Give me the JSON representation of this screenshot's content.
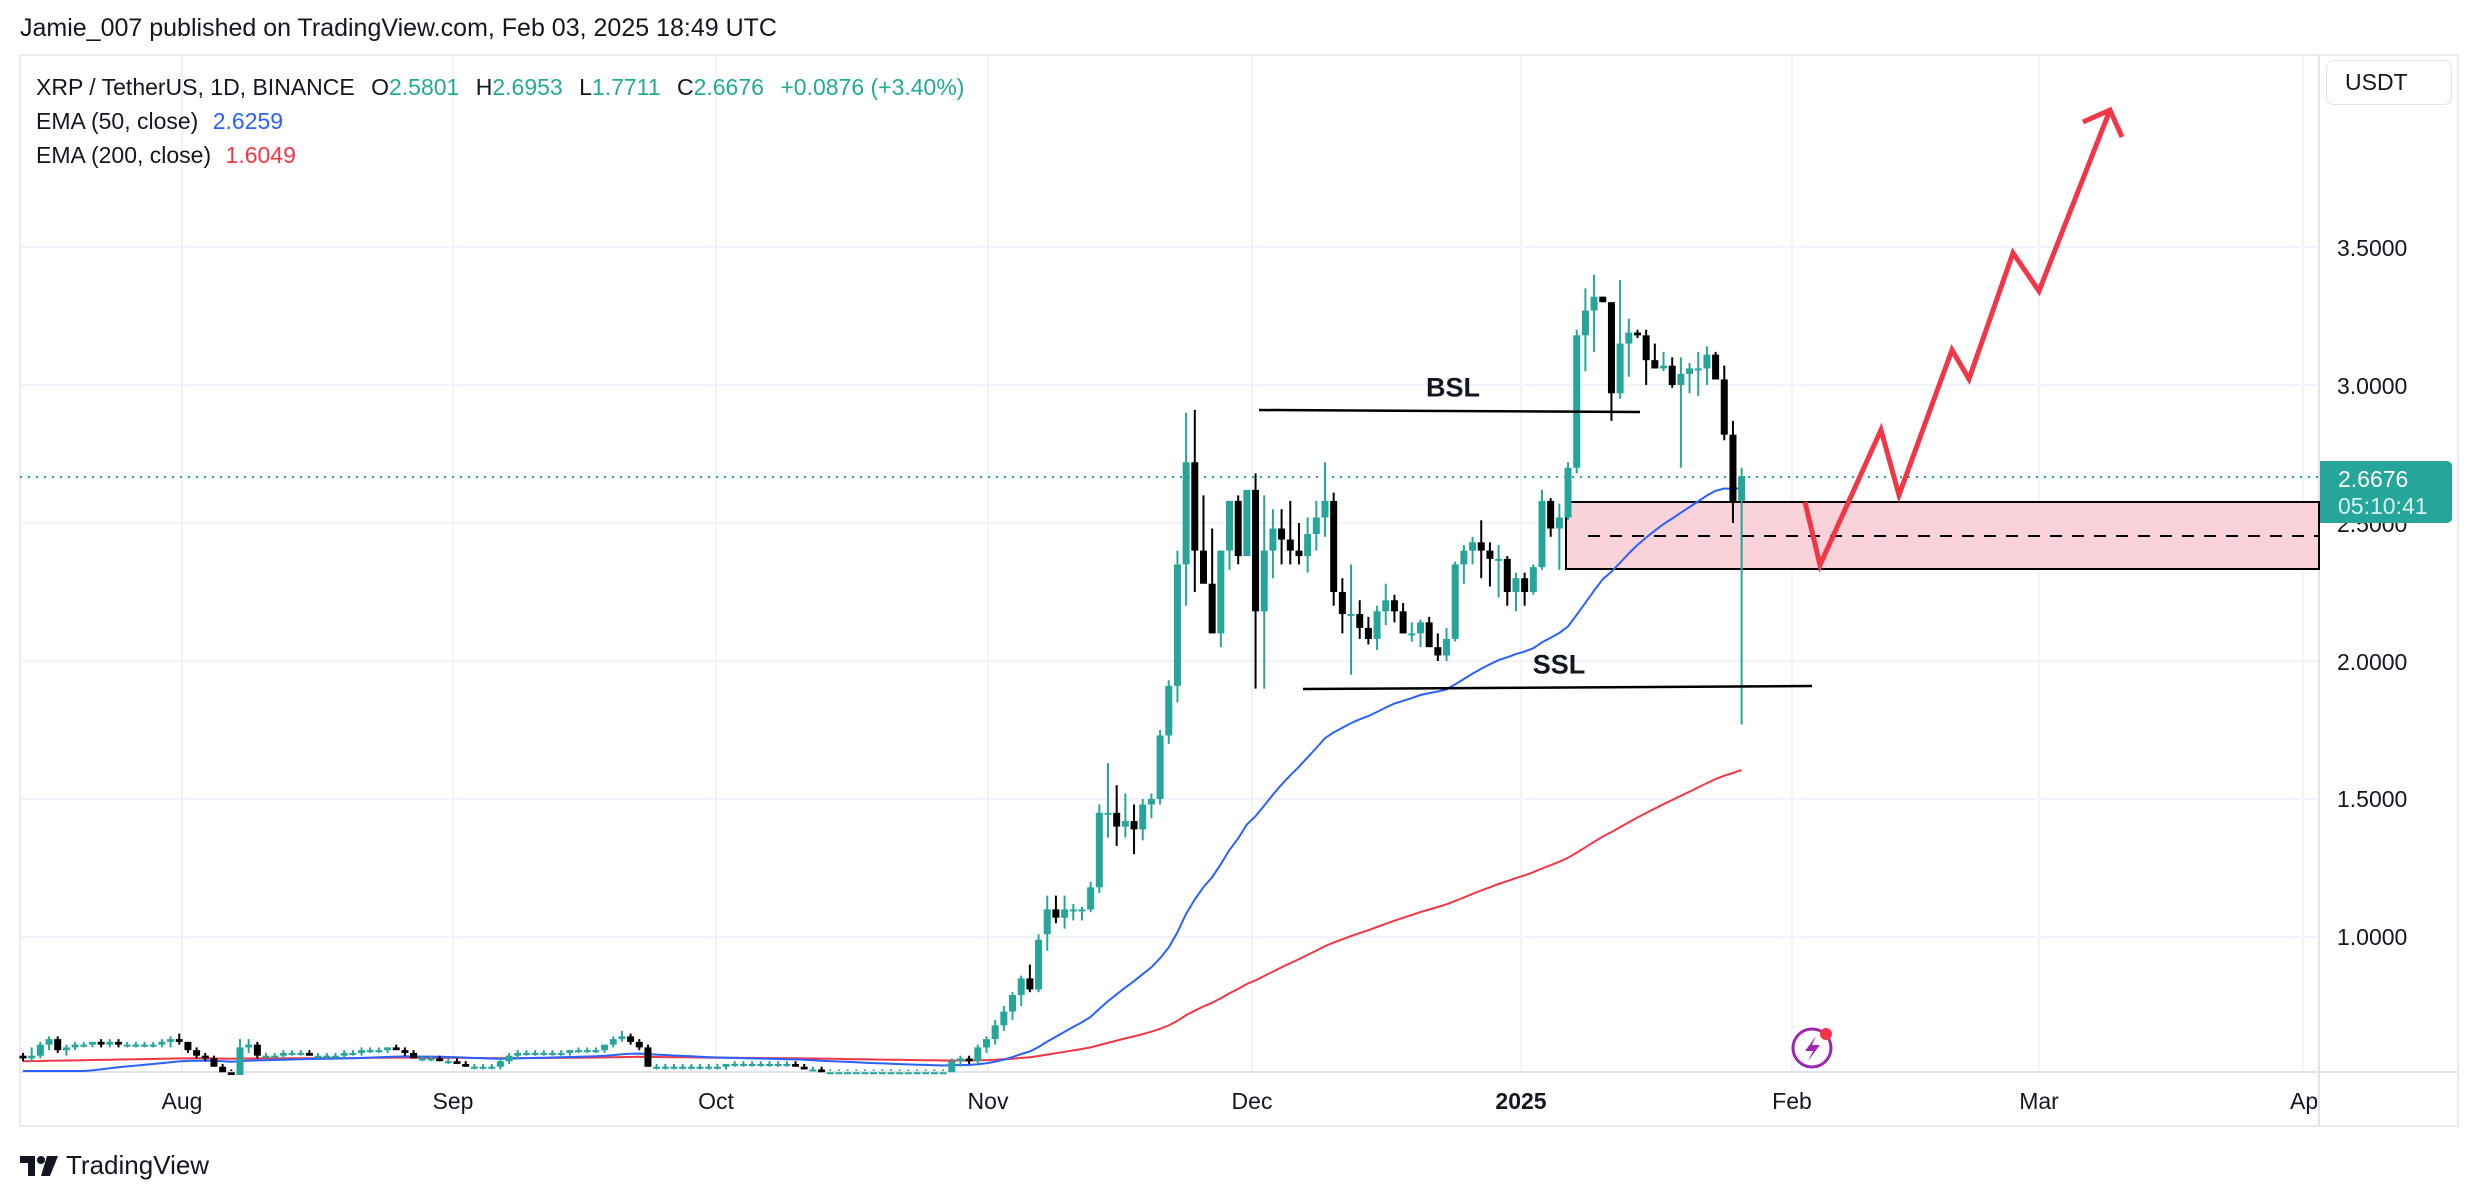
{
  "header": {
    "published_line": "Jamie_007 published on TradingView.com, Feb 03, 2025 18:49 UTC"
  },
  "legend": {
    "symbol_line": "XRP / TetherUS, 1D, BINANCE",
    "o_label": "O",
    "o_value": "2.5801",
    "h_label": "H",
    "h_value": "2.6953",
    "l_label": "L",
    "l_value": "1.7711",
    "c_label": "C",
    "c_value": "2.6676",
    "change": "+0.0876 (+3.40%)",
    "ema50_label": "EMA (50, close)",
    "ema50_value": "2.6259",
    "ema50_color": "#2962ff",
    "ema200_label": "EMA (200, close)",
    "ema200_value": "1.6049",
    "ema200_color": "#f23645"
  },
  "price_axis": {
    "currency": "USDT",
    "ticks": [
      "3.5000",
      "3.0000",
      "2.5000",
      "2.0000",
      "1.5000",
      "1.0000"
    ],
    "last_price": "2.6676",
    "countdown": "05:10:41"
  },
  "time_axis": {
    "ticks": [
      "Aug",
      "Sep",
      "Oct",
      "Nov",
      "Dec",
      "2025",
      "Feb",
      "Mar",
      "Ap"
    ]
  },
  "annotations": {
    "bsl": "BSL",
    "ssl": "SSL"
  },
  "brand": {
    "name": "TradingView"
  },
  "colors": {
    "up": "#26a69a",
    "down": "#000000",
    "zone_fill": "#f9d3d9",
    "projection": "#f23645",
    "last_price_line": "#26a69a"
  },
  "chart_data": {
    "type": "candlestick",
    "title": "XRP / TetherUS, 1D, BINANCE",
    "xlabel": "",
    "ylabel": "USDT",
    "ylim": [
      0.51,
      3.83
    ],
    "grid": true,
    "x_ticks": [
      "Aug",
      "Sep",
      "Oct",
      "Nov",
      "Dec",
      "2025",
      "Feb",
      "Mar",
      "Apr"
    ],
    "y_ticks": [
      1.0,
      1.5,
      2.0,
      2.5,
      3.0,
      3.5
    ],
    "start_date": "2024-07-14",
    "ohlc": [
      [
        0.57,
        0.58,
        0.55,
        0.56
      ],
      [
        0.56,
        0.6,
        0.55,
        0.57
      ],
      [
        0.57,
        0.62,
        0.56,
        0.61
      ],
      [
        0.61,
        0.64,
        0.59,
        0.63
      ],
      [
        0.63,
        0.64,
        0.58,
        0.59
      ],
      [
        0.59,
        0.61,
        0.57,
        0.6
      ],
      [
        0.6,
        0.62,
        0.59,
        0.61
      ],
      [
        0.61,
        0.62,
        0.6,
        0.61
      ],
      [
        0.61,
        0.62,
        0.6,
        0.62
      ],
      [
        0.62,
        0.63,
        0.6,
        0.61
      ],
      [
        0.61,
        0.63,
        0.6,
        0.62
      ],
      [
        0.62,
        0.63,
        0.6,
        0.61
      ],
      [
        0.61,
        0.62,
        0.6,
        0.61
      ],
      [
        0.61,
        0.62,
        0.6,
        0.61
      ],
      [
        0.61,
        0.62,
        0.6,
        0.61
      ],
      [
        0.61,
        0.62,
        0.6,
        0.61
      ],
      [
        0.61,
        0.63,
        0.6,
        0.62
      ],
      [
        0.62,
        0.64,
        0.6,
        0.63
      ],
      [
        0.63,
        0.65,
        0.61,
        0.62
      ],
      [
        0.62,
        0.62,
        0.58,
        0.59
      ],
      [
        0.59,
        0.6,
        0.56,
        0.57
      ],
      [
        0.57,
        0.58,
        0.55,
        0.56
      ],
      [
        0.56,
        0.57,
        0.53,
        0.53
      ],
      [
        0.53,
        0.54,
        0.5,
        0.51
      ],
      [
        0.51,
        0.52,
        0.5,
        0.5
      ],
      [
        0.5,
        0.63,
        0.49,
        0.6
      ],
      [
        0.6,
        0.63,
        0.58,
        0.61
      ],
      [
        0.61,
        0.62,
        0.56,
        0.57
      ],
      [
        0.57,
        0.58,
        0.56,
        0.57
      ],
      [
        0.57,
        0.58,
        0.56,
        0.57
      ],
      [
        0.57,
        0.59,
        0.56,
        0.58
      ],
      [
        0.58,
        0.59,
        0.57,
        0.58
      ],
      [
        0.58,
        0.59,
        0.57,
        0.58
      ],
      [
        0.58,
        0.59,
        0.57,
        0.57
      ],
      [
        0.57,
        0.58,
        0.56,
        0.57
      ],
      [
        0.57,
        0.58,
        0.56,
        0.57
      ],
      [
        0.57,
        0.58,
        0.56,
        0.57
      ],
      [
        0.57,
        0.59,
        0.56,
        0.58
      ],
      [
        0.58,
        0.59,
        0.57,
        0.58
      ],
      [
        0.58,
        0.6,
        0.57,
        0.59
      ],
      [
        0.59,
        0.6,
        0.58,
        0.59
      ],
      [
        0.59,
        0.6,
        0.58,
        0.59
      ],
      [
        0.59,
        0.6,
        0.58,
        0.6
      ],
      [
        0.6,
        0.61,
        0.59,
        0.59
      ],
      [
        0.59,
        0.6,
        0.57,
        0.58
      ],
      [
        0.58,
        0.59,
        0.56,
        0.56
      ],
      [
        0.56,
        0.57,
        0.55,
        0.56
      ],
      [
        0.56,
        0.57,
        0.55,
        0.56
      ],
      [
        0.56,
        0.57,
        0.55,
        0.55
      ],
      [
        0.55,
        0.56,
        0.54,
        0.55
      ],
      [
        0.55,
        0.56,
        0.54,
        0.54
      ],
      [
        0.54,
        0.55,
        0.53,
        0.53
      ],
      [
        0.53,
        0.54,
        0.52,
        0.53
      ],
      [
        0.53,
        0.54,
        0.52,
        0.53
      ],
      [
        0.53,
        0.54,
        0.52,
        0.53
      ],
      [
        0.53,
        0.56,
        0.52,
        0.55
      ],
      [
        0.55,
        0.58,
        0.54,
        0.57
      ],
      [
        0.57,
        0.59,
        0.56,
        0.58
      ],
      [
        0.58,
        0.59,
        0.57,
        0.58
      ],
      [
        0.58,
        0.59,
        0.57,
        0.58
      ],
      [
        0.58,
        0.59,
        0.57,
        0.58
      ],
      [
        0.58,
        0.59,
        0.57,
        0.58
      ],
      [
        0.58,
        0.59,
        0.57,
        0.58
      ],
      [
        0.58,
        0.59,
        0.57,
        0.59
      ],
      [
        0.59,
        0.6,
        0.58,
        0.59
      ],
      [
        0.59,
        0.6,
        0.58,
        0.59
      ],
      [
        0.59,
        0.6,
        0.58,
        0.59
      ],
      [
        0.59,
        0.61,
        0.58,
        0.61
      ],
      [
        0.61,
        0.64,
        0.6,
        0.63
      ],
      [
        0.63,
        0.66,
        0.62,
        0.64
      ],
      [
        0.64,
        0.65,
        0.61,
        0.62
      ],
      [
        0.62,
        0.63,
        0.59,
        0.6
      ],
      [
        0.6,
        0.61,
        0.53,
        0.53
      ],
      [
        0.53,
        0.54,
        0.52,
        0.53
      ],
      [
        0.53,
        0.54,
        0.52,
        0.53
      ],
      [
        0.53,
        0.54,
        0.52,
        0.53
      ],
      [
        0.53,
        0.54,
        0.52,
        0.53
      ],
      [
        0.53,
        0.54,
        0.52,
        0.53
      ],
      [
        0.53,
        0.54,
        0.52,
        0.53
      ],
      [
        0.53,
        0.54,
        0.52,
        0.53
      ],
      [
        0.53,
        0.54,
        0.52,
        0.53
      ],
      [
        0.53,
        0.54,
        0.52,
        0.54
      ],
      [
        0.54,
        0.55,
        0.53,
        0.54
      ],
      [
        0.54,
        0.55,
        0.53,
        0.54
      ],
      [
        0.54,
        0.55,
        0.53,
        0.54
      ],
      [
        0.54,
        0.55,
        0.53,
        0.54
      ],
      [
        0.54,
        0.55,
        0.53,
        0.54
      ],
      [
        0.54,
        0.55,
        0.53,
        0.54
      ],
      [
        0.54,
        0.55,
        0.53,
        0.54
      ],
      [
        0.54,
        0.55,
        0.53,
        0.53
      ],
      [
        0.53,
        0.54,
        0.52,
        0.52
      ],
      [
        0.52,
        0.53,
        0.51,
        0.52
      ],
      [
        0.52,
        0.53,
        0.51,
        0.51
      ],
      [
        0.51,
        0.52,
        0.5,
        0.51
      ],
      [
        0.51,
        0.52,
        0.5,
        0.51
      ],
      [
        0.51,
        0.52,
        0.5,
        0.51
      ],
      [
        0.51,
        0.52,
        0.5,
        0.51
      ],
      [
        0.51,
        0.52,
        0.5,
        0.51
      ],
      [
        0.51,
        0.52,
        0.5,
        0.51
      ],
      [
        0.51,
        0.52,
        0.5,
        0.51
      ],
      [
        0.51,
        0.52,
        0.5,
        0.51
      ],
      [
        0.51,
        0.52,
        0.5,
        0.51
      ],
      [
        0.51,
        0.52,
        0.5,
        0.51
      ],
      [
        0.51,
        0.52,
        0.5,
        0.51
      ],
      [
        0.51,
        0.52,
        0.5,
        0.51
      ],
      [
        0.51,
        0.52,
        0.5,
        0.51
      ],
      [
        0.51,
        0.52,
        0.5,
        0.51
      ],
      [
        0.51,
        0.56,
        0.5,
        0.55
      ],
      [
        0.55,
        0.57,
        0.53,
        0.56
      ],
      [
        0.56,
        0.57,
        0.54,
        0.55
      ],
      [
        0.55,
        0.61,
        0.54,
        0.6
      ],
      [
        0.6,
        0.64,
        0.58,
        0.63
      ],
      [
        0.63,
        0.7,
        0.61,
        0.68
      ],
      [
        0.68,
        0.75,
        0.66,
        0.73
      ],
      [
        0.73,
        0.8,
        0.7,
        0.79
      ],
      [
        0.79,
        0.86,
        0.75,
        0.85
      ],
      [
        0.85,
        0.9,
        0.8,
        0.81
      ],
      [
        0.81,
        1.01,
        0.8,
        0.99
      ],
      [
        1.01,
        1.15,
        0.95,
        1.1
      ],
      [
        1.1,
        1.15,
        1.05,
        1.07
      ],
      [
        1.07,
        1.15,
        1.03,
        1.1
      ],
      [
        1.1,
        1.12,
        1.06,
        1.1
      ],
      [
        1.1,
        1.11,
        1.06,
        1.1
      ],
      [
        1.1,
        1.2,
        1.09,
        1.18
      ],
      [
        1.18,
        1.48,
        1.16,
        1.45
      ],
      [
        1.45,
        1.63,
        1.36,
        1.45
      ],
      [
        1.45,
        1.55,
        1.33,
        1.4
      ],
      [
        1.4,
        1.52,
        1.36,
        1.42
      ],
      [
        1.42,
        1.48,
        1.3,
        1.39
      ],
      [
        1.39,
        1.5,
        1.35,
        1.48
      ],
      [
        1.48,
        1.52,
        1.43,
        1.5
      ],
      [
        1.5,
        1.75,
        1.48,
        1.73
      ],
      [
        1.73,
        1.93,
        1.7,
        1.91
      ],
      [
        1.91,
        2.4,
        1.85,
        2.35
      ],
      [
        2.35,
        2.9,
        2.2,
        2.72
      ],
      [
        2.72,
        2.91,
        2.25,
        2.4
      ],
      [
        2.4,
        2.6,
        2.3,
        2.28
      ],
      [
        2.28,
        2.48,
        2.19,
        2.1
      ],
      [
        2.1,
        2.4,
        2.05,
        2.4
      ],
      [
        2.4,
        2.58,
        2.33,
        2.58
      ],
      [
        2.58,
        2.6,
        2.35,
        2.38
      ],
      [
        2.38,
        2.45,
        2.4,
        2.62
      ],
      [
        2.62,
        2.68,
        1.9,
        2.18
      ],
      [
        2.18,
        2.6,
        1.9,
        2.4
      ],
      [
        2.4,
        2.55,
        2.3,
        2.48
      ],
      [
        2.48,
        2.55,
        2.35,
        2.44
      ],
      [
        2.44,
        2.58,
        2.35,
        2.4
      ],
      [
        2.4,
        2.5,
        2.35,
        2.38
      ],
      [
        2.38,
        2.52,
        2.32,
        2.46
      ],
      [
        2.46,
        2.58,
        2.4,
        2.52
      ],
      [
        2.52,
        2.72,
        2.45,
        2.58
      ],
      [
        2.58,
        2.61,
        2.2,
        2.25
      ],
      [
        2.25,
        2.3,
        2.1,
        2.17
      ],
      [
        2.17,
        2.35,
        1.95,
        2.17
      ],
      [
        2.17,
        2.22,
        2.08,
        2.12
      ],
      [
        2.12,
        2.16,
        2.06,
        2.08
      ],
      [
        2.08,
        2.2,
        2.04,
        2.18
      ],
      [
        2.18,
        2.28,
        2.13,
        2.22
      ],
      [
        2.22,
        2.24,
        2.14,
        2.18
      ],
      [
        2.18,
        2.21,
        2.1,
        2.1
      ],
      [
        2.1,
        2.14,
        2.07,
        2.1
      ],
      [
        2.1,
        2.15,
        2.05,
        2.14
      ],
      [
        2.14,
        2.16,
        2.06,
        2.05
      ],
      [
        2.05,
        2.1,
        2.0,
        2.02
      ],
      [
        2.02,
        2.12,
        2.0,
        2.08
      ],
      [
        2.08,
        2.36,
        2.07,
        2.35
      ],
      [
        2.35,
        2.42,
        2.28,
        2.4
      ],
      [
        2.4,
        2.45,
        2.35,
        2.43
      ],
      [
        2.43,
        2.51,
        2.3,
        2.4
      ],
      [
        2.4,
        2.43,
        2.27,
        2.37
      ],
      [
        2.37,
        2.42,
        2.23,
        2.37
      ],
      [
        2.37,
        2.38,
        2.2,
        2.25
      ],
      [
        2.25,
        2.32,
        2.18,
        2.3
      ],
      [
        2.3,
        2.32,
        2.2,
        2.25
      ],
      [
        2.25,
        2.35,
        2.24,
        2.34
      ],
      [
        2.34,
        2.62,
        2.33,
        2.58
      ],
      [
        2.58,
        2.59,
        2.45,
        2.48
      ],
      [
        2.48,
        2.57,
        2.33,
        2.52
      ],
      [
        2.52,
        2.72,
        2.51,
        2.7
      ],
      [
        2.7,
        3.2,
        2.68,
        3.18
      ],
      [
        3.18,
        3.35,
        3.05,
        3.27
      ],
      [
        3.27,
        3.4,
        3.12,
        3.32
      ],
      [
        3.32,
        3.32,
        3.3,
        3.3
      ],
      [
        3.3,
        3.3,
        2.87,
        2.97
      ],
      [
        2.97,
        3.38,
        2.95,
        3.15
      ],
      [
        3.15,
        3.24,
        3.03,
        3.19
      ],
      [
        3.19,
        3.2,
        3.17,
        3.18
      ],
      [
        3.18,
        3.2,
        3.0,
        3.09
      ],
      [
        3.09,
        3.15,
        3.06,
        3.06
      ],
      [
        3.06,
        3.12,
        3.05,
        3.07
      ],
      [
        3.07,
        3.1,
        2.99,
        3.0
      ],
      [
        3.0,
        3.1,
        2.7,
        3.04
      ],
      [
        3.04,
        3.08,
        2.97,
        3.06
      ],
      [
        3.06,
        3.12,
        2.96,
        3.06
      ],
      [
        3.06,
        3.14,
        3.0,
        3.11
      ],
      [
        3.11,
        3.12,
        3.02,
        3.02
      ],
      [
        3.02,
        3.07,
        2.8,
        2.82
      ],
      [
        2.82,
        2.87,
        2.5,
        2.58
      ],
      [
        2.58,
        2.7,
        1.77,
        2.67
      ]
    ],
    "ema50_end": 2.6259,
    "ema200_end": 1.6049,
    "last_close": 2.6676,
    "drawings": {
      "bsl_level": 2.91,
      "ssl_level": 1.9,
      "demand_zone": {
        "top": 2.59,
        "bottom": 2.34,
        "mid": 2.46
      },
      "projection_path": [
        [
          2.49,
          "Feb 3"
        ],
        [
          2.34,
          "Feb 4"
        ],
        [
          2.83,
          "Feb 11"
        ],
        [
          2.59,
          "Feb 13"
        ],
        [
          3.12,
          "Feb 19"
        ],
        [
          3.01,
          "Feb 21"
        ],
        [
          3.47,
          "Feb 26"
        ],
        [
          3.33,
          "Mar 1"
        ],
        [
          3.99,
          "Mar 9"
        ]
      ]
    }
  }
}
